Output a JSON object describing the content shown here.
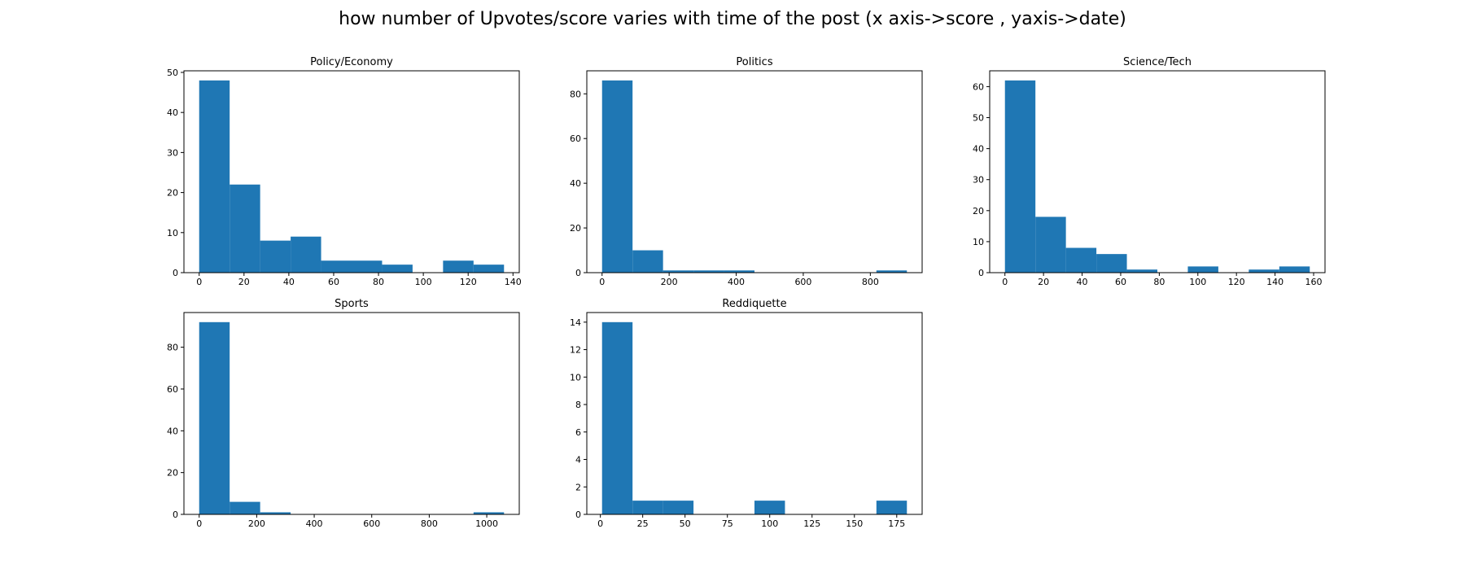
{
  "title": "how number of Upvotes/score varies with time of the post (x axis->score , yaxis->date)",
  "chart_data": [
    {
      "type": "histogram",
      "title": "Policy/Economy",
      "color": "#1f77b4",
      "bins": [
        0,
        13.6,
        27.2,
        40.8,
        54.4,
        68,
        81.6,
        95.2,
        108.8,
        122.4,
        136
      ],
      "values": [
        48,
        22,
        8,
        9,
        3,
        3,
        2,
        0,
        3,
        2
      ],
      "xlim": [
        -6.8,
        142.8
      ],
      "xticks": [
        0,
        20,
        40,
        60,
        80,
        100,
        120,
        140
      ],
      "ylim": [
        0,
        50.4
      ],
      "yticks": [
        0,
        10,
        20,
        30,
        40,
        50
      ]
    },
    {
      "type": "histogram",
      "title": "Politics",
      "color": "#1f77b4",
      "bins": [
        0,
        90.9,
        181.8,
        272.7,
        363.6,
        454.5,
        545.4,
        636.3,
        727.2,
        818.1,
        909
      ],
      "values": [
        86,
        10,
        1,
        1,
        1,
        0,
        0,
        0,
        0,
        1
      ],
      "xlim": [
        -45.5,
        954.5
      ],
      "xticks": [
        0,
        200,
        400,
        600,
        800
      ],
      "ylim": [
        0,
        90.3
      ],
      "yticks": [
        0,
        20,
        40,
        60,
        80
      ]
    },
    {
      "type": "histogram",
      "title": "Science/Tech",
      "color": "#1f77b4",
      "bins": [
        0,
        15.8,
        31.6,
        47.4,
        63.2,
        79,
        94.8,
        110.6,
        126.4,
        142.2,
        158
      ],
      "values": [
        62,
        18,
        8,
        6,
        1,
        0,
        2,
        0,
        1,
        2
      ],
      "xlim": [
        -7.9,
        165.9
      ],
      "xticks": [
        0,
        20,
        40,
        60,
        80,
        100,
        120,
        140,
        160
      ],
      "ylim": [
        0,
        65.1
      ],
      "yticks": [
        0,
        10,
        20,
        30,
        40,
        50,
        60
      ]
    },
    {
      "type": "histogram",
      "title": "Sports",
      "color": "#1f77b4",
      "bins": [
        0,
        106,
        212,
        318,
        424,
        530,
        636,
        742,
        848,
        954,
        1060
      ],
      "values": [
        92,
        6,
        1,
        0,
        0,
        0,
        0,
        0,
        0,
        1
      ],
      "xlim": [
        -53,
        1113
      ],
      "xticks": [
        0,
        200,
        400,
        600,
        800,
        1000
      ],
      "ylim": [
        0,
        96.6
      ],
      "yticks": [
        0,
        20,
        40,
        60,
        80
      ]
    },
    {
      "type": "histogram",
      "title": "Reddiquette",
      "color": "#1f77b4",
      "bins": [
        1,
        19,
        37,
        55,
        73,
        91,
        109,
        127,
        145,
        163,
        181
      ],
      "values": [
        14,
        1,
        1,
        0,
        0,
        1,
        0,
        0,
        0,
        1
      ],
      "xlim": [
        -8,
        190
      ],
      "xticks": [
        0,
        25,
        50,
        75,
        100,
        125,
        150,
        175
      ],
      "ylim": [
        0,
        14.7
      ],
      "yticks": [
        0,
        2,
        4,
        6,
        8,
        10,
        12,
        14
      ]
    }
  ]
}
